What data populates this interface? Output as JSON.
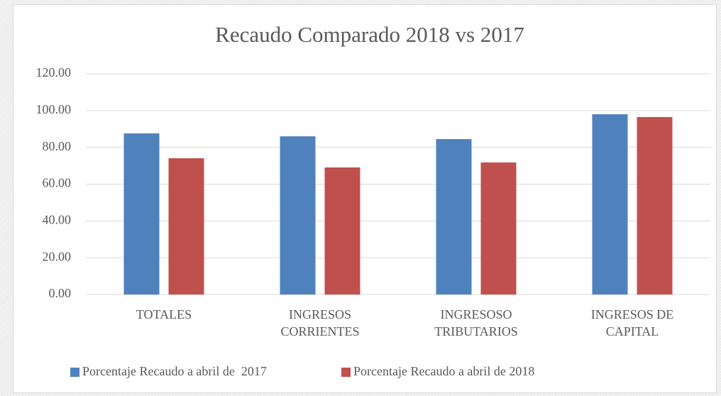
{
  "chart_data": {
    "type": "bar",
    "title": "Recaudo Comparado 2018 vs 2017",
    "categories": [
      "TOTALES",
      "INGRESOS\nCORRIENTES",
      "INGRESOSO\nTRIBUTARIOS",
      "INGRESOS DE\nCAPITAL"
    ],
    "series": [
      {
        "name": "Porcentaje Recaudo a abril de  2017",
        "color": "#4f81bd",
        "values": [
          87.6,
          86.0,
          84.5,
          98.0
        ]
      },
      {
        "name": "Porcentaje Recaudo a abril de 2018",
        "color": "#c0504d",
        "values": [
          74.1,
          69.1,
          71.8,
          96.5
        ]
      }
    ],
    "ylim": [
      0,
      120
    ],
    "yticks": [
      {
        "value": 0,
        "label": "0.00"
      },
      {
        "value": 20,
        "label": "20.00"
      },
      {
        "value": 40,
        "label": "40.00"
      },
      {
        "value": 60,
        "label": "60.00"
      },
      {
        "value": 80,
        "label": "80.00"
      },
      {
        "value": 100,
        "label": "100.00"
      },
      {
        "value": 120,
        "label": "120.00"
      }
    ],
    "grid": true,
    "legend": "bottom"
  }
}
